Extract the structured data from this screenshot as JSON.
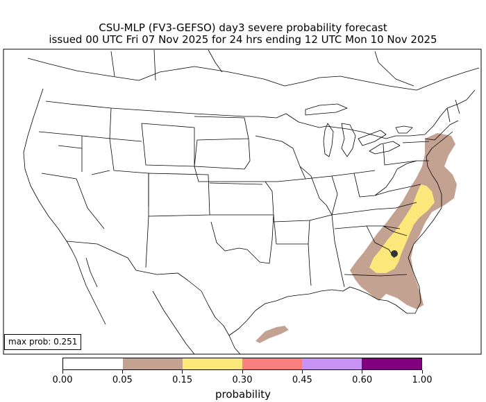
{
  "title": {
    "line1": "CSU-MLP (FV3-GEFSO) day3 severe probability forecast",
    "line2": "issued 00 UTC Fri 07 Nov 2025 for 24 hrs ending 12 UTC Mon 10 Nov 2025"
  },
  "max_prob": {
    "label": "max prob: 0.251",
    "value": 0.251
  },
  "colorbar": {
    "label": "probability",
    "ticks": [
      "0.00",
      "0.05",
      "0.15",
      "0.30",
      "0.45",
      "0.60",
      "1.00"
    ],
    "colors": [
      "#ffffff",
      "#c4a292",
      "#fce87a",
      "#fc7f7f",
      "#c692f4",
      "#800080"
    ]
  },
  "map": {
    "region": "CONUS",
    "contour_colors": {
      "low": "#c4a292",
      "mid": "#fce87a"
    },
    "max_marker_color": "#333333"
  }
}
